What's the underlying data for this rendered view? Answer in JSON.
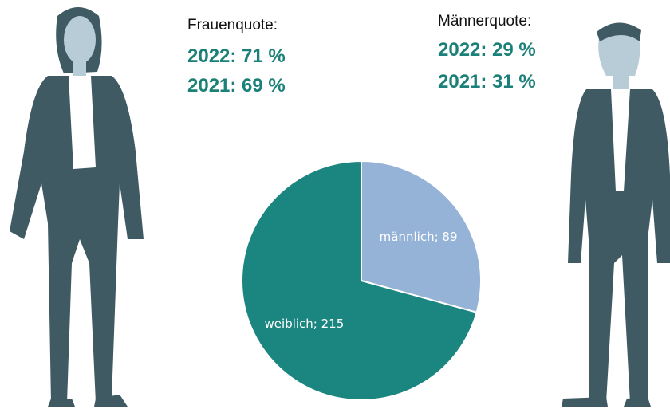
{
  "chart_data": {
    "type": "pie",
    "categories": [
      "männlich",
      "weiblich"
    ],
    "values": [
      89,
      215
    ],
    "value_labels": [
      "männlich; 89",
      "weiblich; 215"
    ],
    "colors": [
      "#95b3d7",
      "#1b8580"
    ],
    "quotes": [
      {
        "title": "Frauenquote:",
        "lines": [
          "2022: 71 %",
          "2021: 69 %"
        ]
      },
      {
        "title": "Männerquote:",
        "lines": [
          "2022: 29 %",
          "2021: 31 %"
        ]
      }
    ]
  }
}
